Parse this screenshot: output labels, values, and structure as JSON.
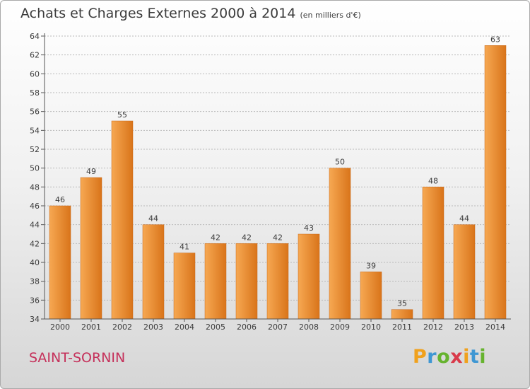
{
  "header": {
    "title": "Achats et Charges Externes 2000 à 2014",
    "subtitle": "(en milliers d'€)"
  },
  "footer": {
    "commune": "SAINT-SORNIN",
    "brand": {
      "letters": [
        "P",
        "r",
        "o",
        "x",
        "i",
        "t",
        "i"
      ],
      "colors": [
        "#f0a11d",
        "#3f97d3",
        "#66b32e",
        "#d93a4a",
        "#f0a11d",
        "#3f97d3",
        "#66b32e"
      ]
    }
  },
  "colors": {
    "bar_light": "#f6a852",
    "bar_dark": "#d9741a",
    "axis": "#555555",
    "grid": "#b9b9b9",
    "text": "#3c3c3c",
    "commune": "#c5305a"
  },
  "chart_data": {
    "type": "bar",
    "title": "Achats et Charges Externes 2000 à 2014",
    "subtitle": "(en milliers d'€)",
    "categories": [
      "2000",
      "2001",
      "2002",
      "2003",
      "2004",
      "2005",
      "2006",
      "2007",
      "2008",
      "2009",
      "2010",
      "2011",
      "2012",
      "2013",
      "2014"
    ],
    "values": [
      46,
      49,
      55,
      44,
      41,
      42,
      42,
      42,
      43,
      50,
      39,
      35,
      48,
      44,
      63
    ],
    "ylim": [
      34,
      64
    ],
    "yticks": [
      34,
      36,
      38,
      40,
      42,
      44,
      46,
      48,
      50,
      52,
      54,
      56,
      58,
      60,
      62,
      64
    ],
    "grid": true,
    "data_labels": true,
    "xlabel": "",
    "ylabel": ""
  }
}
